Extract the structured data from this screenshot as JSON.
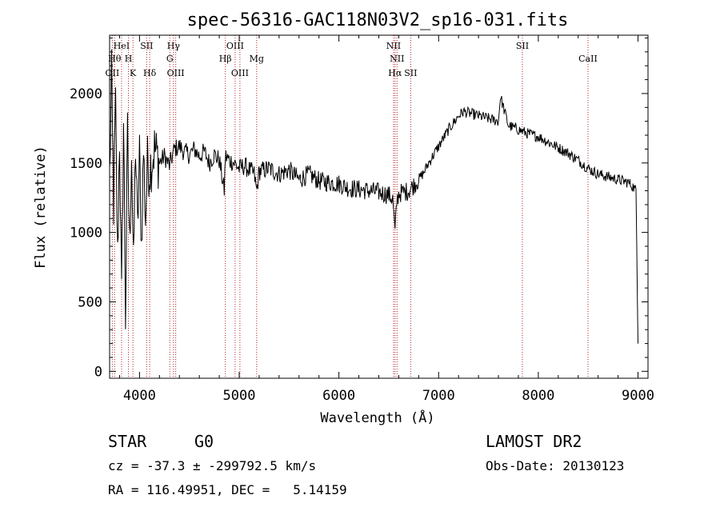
{
  "chart_data": {
    "type": "line",
    "title": "spec-56316-GAC118N03V2_sp16-031.fits",
    "xlabel": "Wavelength (Å)",
    "ylabel": "Flux (relative)",
    "xlim": [
      3700,
      9100
    ],
    "ylim": [
      -50,
      2420
    ],
    "xticks": [
      4000,
      5000,
      6000,
      7000,
      8000,
      9000
    ],
    "yticks": [
      0,
      500,
      1000,
      1500,
      2000
    ],
    "series": [
      {
        "name": "spectrum",
        "x": [
          3700,
          3720,
          3740,
          3760,
          3780,
          3800,
          3820,
          3840,
          3860,
          3880,
          3900,
          3920,
          3940,
          3960,
          3980,
          4000,
          4020,
          4040,
          4060,
          4080,
          4100,
          4150,
          4200,
          4250,
          4300,
          4350,
          4400,
          4450,
          4500,
          4550,
          4600,
          4650,
          4700,
          4750,
          4800,
          4850,
          4861,
          4900,
          4950,
          5000,
          5050,
          5100,
          5150,
          5175,
          5200,
          5300,
          5400,
          5500,
          5600,
          5700,
          5800,
          5900,
          6000,
          6100,
          6200,
          6300,
          6400,
          6450,
          6500,
          6540,
          6563,
          6580,
          6600,
          6650,
          6700,
          6750,
          6800,
          6850,
          6900,
          6950,
          7000,
          7050,
          7100,
          7150,
          7200,
          7250,
          7300,
          7400,
          7500,
          7600,
          7620,
          7700,
          7800,
          7900,
          8000,
          8100,
          8200,
          8300,
          8400,
          8500,
          8600,
          8700,
          8800,
          8900,
          8950,
          8980,
          9000
        ],
        "y": [
          1400,
          2100,
          1200,
          1900,
          800,
          1700,
          500,
          1800,
          400,
          1700,
          900,
          1600,
          700,
          1650,
          1000,
          1550,
          900,
          1600,
          1100,
          1500,
          1450,
          1600,
          1500,
          1550,
          1480,
          1600,
          1620,
          1580,
          1560,
          1600,
          1550,
          1580,
          1500,
          1560,
          1520,
          1300,
          1550,
          1520,
          1500,
          1460,
          1480,
          1450,
          1420,
          1300,
          1440,
          1460,
          1420,
          1450,
          1380,
          1420,
          1370,
          1360,
          1350,
          1320,
          1310,
          1300,
          1290,
          1280,
          1270,
          1240,
          1000,
          1220,
          1280,
          1290,
          1300,
          1340,
          1380,
          1430,
          1500,
          1560,
          1620,
          1680,
          1740,
          1790,
          1840,
          1870,
          1860,
          1840,
          1820,
          1800,
          1980,
          1770,
          1740,
          1710,
          1690,
          1650,
          1610,
          1570,
          1520,
          1460,
          1420,
          1400,
          1380,
          1360,
          1330,
          1300,
          200
        ]
      }
    ],
    "lines": [
      {
        "name": "OII",
        "wave": 3727,
        "row": 3
      },
      {
        "name": "Hθ",
        "wave": 3750,
        "row": 2
      },
      {
        "name": "HeI",
        "wave": 3820,
        "row": 1
      },
      {
        "name": "H",
        "wave": 3889,
        "row": 2
      },
      {
        "name": "K",
        "wave": 3934,
        "row": 3
      },
      {
        "name": "SII",
        "wave": 4072,
        "row": 1
      },
      {
        "name": "Hδ",
        "wave": 4102,
        "row": 3
      },
      {
        "name": "Hγ",
        "wave": 4341,
        "row": 1
      },
      {
        "name": "G",
        "wave": 4304,
        "row": 2
      },
      {
        "name": "OIII",
        "wave": 4363,
        "row": 3
      },
      {
        "name": "Hβ",
        "wave": 4861,
        "row": 2
      },
      {
        "name": "OIII",
        "wave": 4959,
        "row": 1
      },
      {
        "name": "OIII",
        "wave": 5007,
        "row": 3
      },
      {
        "name": "Mg",
        "wave": 5175,
        "row": 2
      },
      {
        "name": "NII",
        "wave": 6548,
        "row": 1
      },
      {
        "name": "NII",
        "wave": 6583,
        "row": 2
      },
      {
        "name": "Hα",
        "wave": 6563,
        "row": 3
      },
      {
        "name": "SII",
        "wave": 6720,
        "row": 3
      },
      {
        "name": "SII",
        "wave": 7840,
        "row": 1
      },
      {
        "name": "CaII",
        "wave": 8498,
        "row": 2
      }
    ]
  },
  "info": {
    "class": "STAR",
    "subclass": "G0",
    "survey": "LAMOST DR2",
    "cz": "cz = -37.3 ± -299792.5 km/s",
    "obs_date": "Obs-Date: 20130123",
    "radec": "RA = 116.49951, DEC =   5.14159"
  },
  "colors": {
    "axis": "#000000",
    "spectrum": "#000000",
    "line_marker": "#b22222"
  }
}
